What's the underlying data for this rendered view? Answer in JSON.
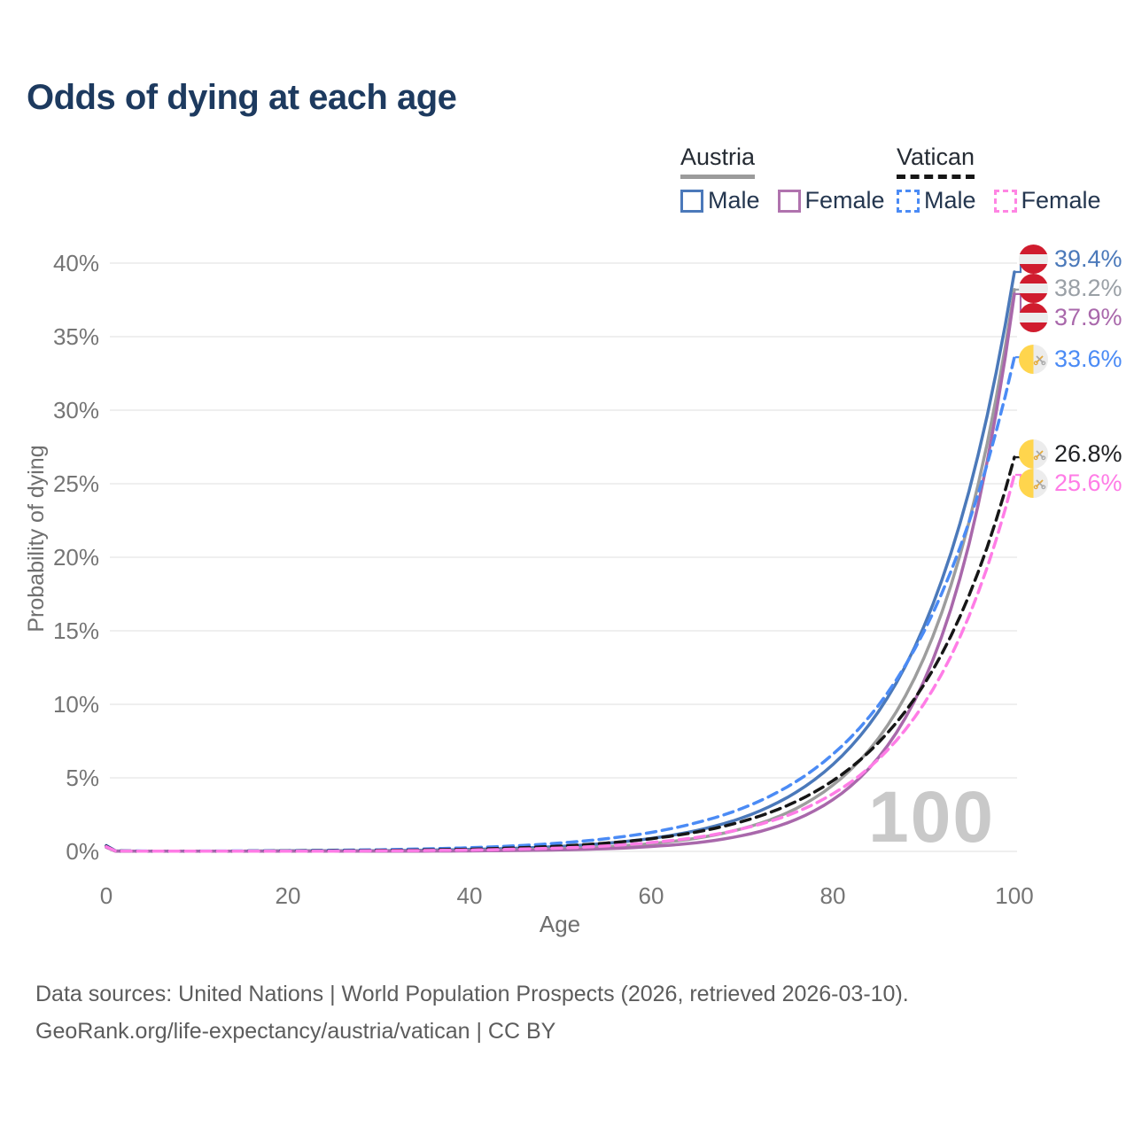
{
  "title": "Odds of dying at each age",
  "watermark": "100",
  "legend": {
    "groups": [
      {
        "label": "Austria",
        "line_style": "solid",
        "underline_color": "#9b9b9b",
        "items": [
          {
            "label": "Male",
            "color": "#4b79ba",
            "dash": false
          },
          {
            "label": "Female",
            "color": "#b073ae",
            "dash": false
          }
        ]
      },
      {
        "label": "Vatican",
        "line_style": "dashed",
        "underline_color": "#161616",
        "items": [
          {
            "label": "Male",
            "color": "#4b8bf5",
            "dash": true
          },
          {
            "label": "Female",
            "color": "#ff85e3",
            "dash": true
          }
        ]
      }
    ]
  },
  "axes": {
    "y_title": "Probability of dying",
    "x_title": "Age",
    "y_ticks": [
      "0%",
      "5%",
      "10%",
      "15%",
      "20%",
      "25%",
      "30%",
      "35%",
      "40%"
    ],
    "x_ticks": [
      "0",
      "20",
      "40",
      "60",
      "80",
      "100"
    ]
  },
  "end_labels": [
    {
      "value": "39.4%",
      "flag": "austria",
      "color": "#4b79ba"
    },
    {
      "value": "38.2%",
      "flag": "austria",
      "color": "#9aa0a6"
    },
    {
      "value": "37.9%",
      "flag": "austria",
      "color": "#a968ab"
    },
    {
      "value": "33.6%",
      "flag": "vatican",
      "color": "#4b8bf5"
    },
    {
      "value": "26.8%",
      "flag": "vatican",
      "color": "#202124"
    },
    {
      "value": "25.6%",
      "flag": "vatican",
      "color": "#ff7ce6"
    }
  ],
  "footer": {
    "line1": "Data sources: United Nations | World Population Prospects (2026, retrieved 2026-03-10).",
    "line2": "GeoRank.org/life-expectancy/austria/vatican | CC BY"
  },
  "colors": {
    "title": "#1d3a5f",
    "grid": "#eaeaea",
    "axis_text": "#757575",
    "watermark": "#c9c9c9",
    "austria_flag_red": "#d01c2e",
    "vatican_flag_yellow": "#ffd54d",
    "austria_male": "#4b79ba",
    "austria_total": "#9d9d9d",
    "austria_female": "#a968ab",
    "vatican_male": "#4b8bf5",
    "vatican_total": "#161616",
    "vatican_female": "#ff7ce6"
  },
  "chart_data": {
    "type": "line",
    "title": "Odds of dying at each age",
    "xlabel": "Age",
    "ylabel": "Probability of dying",
    "xlim": [
      0,
      100
    ],
    "ylim_percent": [
      0,
      40
    ],
    "grid": "horizontal",
    "legend_position": "top-right",
    "ages": [
      0,
      1,
      5,
      10,
      15,
      20,
      25,
      30,
      35,
      40,
      45,
      50,
      55,
      60,
      65,
      70,
      75,
      80,
      85,
      90,
      95,
      100
    ],
    "series": [
      {
        "id": "austria-male",
        "name": "Austria Male",
        "country": "Austria",
        "sex": "Male",
        "style": "solid",
        "color": "#4b79ba",
        "end_value_percent": 39.4,
        "values": [
          0.35,
          0.03,
          0.01,
          0.01,
          0.02,
          0.04,
          0.04,
          0.05,
          0.08,
          0.13,
          0.21,
          0.34,
          0.55,
          0.88,
          1.42,
          2.28,
          3.67,
          5.9,
          9.48,
          15.24,
          24.5,
          39.4
        ]
      },
      {
        "id": "austria-total",
        "name": "Austria",
        "country": "Austria",
        "sex": "Both",
        "style": "solid",
        "color": "#9d9d9d",
        "end_value_percent": 38.2,
        "values": [
          0.31,
          0.03,
          0.01,
          0.01,
          0.02,
          0.03,
          0.03,
          0.03,
          0.04,
          0.06,
          0.11,
          0.18,
          0.31,
          0.53,
          0.9,
          1.54,
          2.63,
          4.5,
          7.67,
          13.1,
          22.4,
          38.2
        ]
      },
      {
        "id": "austria-female",
        "name": "Austria Female",
        "country": "Austria",
        "sex": "Female",
        "style": "solid",
        "color": "#a968ab",
        "end_value_percent": 37.9,
        "values": [
          0.28,
          0.02,
          0.01,
          0.01,
          0.01,
          0.02,
          0.02,
          0.02,
          0.02,
          0.03,
          0.06,
          0.1,
          0.18,
          0.33,
          0.59,
          1.07,
          1.94,
          3.51,
          6.36,
          11.53,
          20.9,
          37.9
        ]
      },
      {
        "id": "vatican-male",
        "name": "Vatican Male",
        "country": "Vatican",
        "sex": "Male",
        "style": "dashed",
        "color": "#4b8bf5",
        "end_value_percent": 33.6,
        "values": [
          0.4,
          0.04,
          0.02,
          0.02,
          0.03,
          0.05,
          0.08,
          0.11,
          0.17,
          0.25,
          0.38,
          0.57,
          0.86,
          1.29,
          1.95,
          2.92,
          4.39,
          6.6,
          9.91,
          14.9,
          22.4,
          33.6
        ]
      },
      {
        "id": "vatican-total",
        "name": "Vatican",
        "country": "Vatican",
        "sex": "Both",
        "style": "dashed",
        "color": "#161616",
        "end_value_percent": 26.8,
        "values": [
          0.36,
          0.03,
          0.01,
          0.01,
          0.02,
          0.03,
          0.04,
          0.07,
          0.1,
          0.15,
          0.24,
          0.36,
          0.56,
          0.86,
          1.32,
          2.03,
          3.12,
          4.8,
          7.38,
          11.3,
          17.4,
          26.8
        ]
      },
      {
        "id": "vatican-female",
        "name": "Vatican Female",
        "country": "Vatican",
        "sex": "Female",
        "style": "dashed",
        "color": "#ff7ce6",
        "end_value_percent": 25.6,
        "values": [
          0.32,
          0.03,
          0.01,
          0.01,
          0.01,
          0.02,
          0.02,
          0.04,
          0.06,
          0.09,
          0.15,
          0.23,
          0.37,
          0.6,
          0.95,
          1.53,
          2.44,
          3.91,
          6.25,
          10.0,
          16.0,
          25.6
        ]
      }
    ]
  }
}
